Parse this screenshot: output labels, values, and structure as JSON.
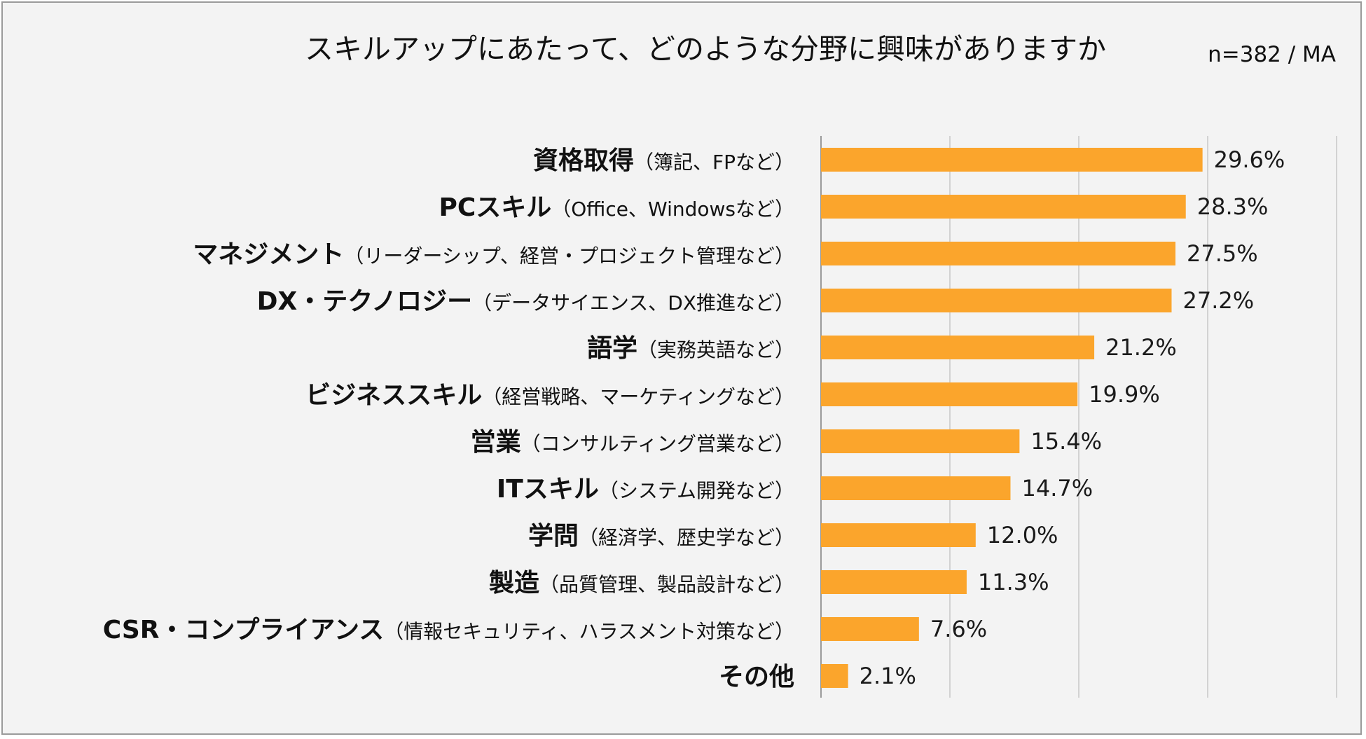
{
  "chart_data": {
    "type": "bar",
    "orientation": "horizontal",
    "title": "スキルアップにあたって、どのような分野に興味がありますか",
    "note": "n=382 / MA",
    "categories": [
      {
        "main": "資格取得",
        "sub": "（簿記、FPなど）"
      },
      {
        "main": "PCスキル",
        "sub": "（Office、Windowsなど）"
      },
      {
        "main": "マネジメント",
        "sub": "（リーダーシップ、経営・プロジェクト管理など）"
      },
      {
        "main": "DX・テクノロジー",
        "sub": "（データサイエンス、DX推進など）"
      },
      {
        "main": "語学",
        "sub": "（実務英語など）"
      },
      {
        "main": "ビジネススキル",
        "sub": "（経営戦略、マーケティングなど）"
      },
      {
        "main": "営業",
        "sub": "（コンサルティング営業など）"
      },
      {
        "main": "ITスキル",
        "sub": "（システム開発など）"
      },
      {
        "main": "学問",
        "sub": "（経済学、歴史学など）"
      },
      {
        "main": "製造",
        "sub": "（品質管理、製品設計など）"
      },
      {
        "main": "CSR・コンプライアンス",
        "sub": "（情報セキュリティ、ハラスメント対策など）"
      },
      {
        "main": "その他",
        "sub": ""
      }
    ],
    "values": [
      29.6,
      28.3,
      27.5,
      27.2,
      21.2,
      19.9,
      15.4,
      14.7,
      12.0,
      11.3,
      7.6,
      2.1
    ],
    "value_labels": [
      "29.6%",
      "28.3%",
      "27.5%",
      "27.2%",
      "21.2%",
      "19.9%",
      "15.4%",
      "14.7%",
      "12.0%",
      "11.3%",
      "7.6%",
      "2.1%"
    ],
    "xlim": [
      0,
      40
    ],
    "gridlines_at": [
      0,
      10,
      20,
      30,
      40
    ],
    "grid": true,
    "bar_color": "#FBA52C",
    "grid_color": "#c8c8c8"
  }
}
